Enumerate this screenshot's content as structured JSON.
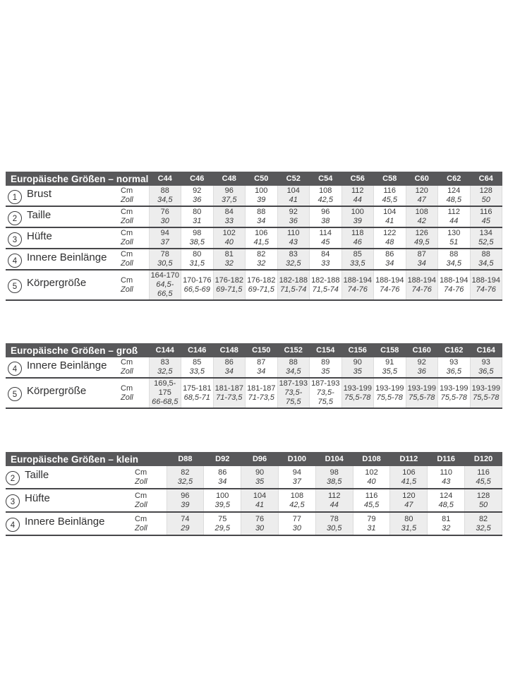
{
  "colors": {
    "header_bar": "#58585a",
    "header_text": "#ffffff",
    "row_line": "#47474a",
    "shaded_column": "#ededed",
    "column_divider": "#dcdcdc",
    "text": "#3a3a3a"
  },
  "unit_labels": {
    "cm": "Cm",
    "zoll": "Zoll"
  },
  "tables": [
    {
      "id": "normal",
      "title": "Europäische Größen – normal",
      "columns": [
        "C44",
        "C46",
        "C48",
        "C50",
        "C52",
        "C54",
        "C56",
        "C58",
        "C60",
        "C62",
        "C64"
      ],
      "rows": [
        {
          "num": "1",
          "label": "Brust",
          "cm": [
            "88",
            "92",
            "96",
            "100",
            "104",
            "108",
            "112",
            "116",
            "120",
            "124",
            "128"
          ],
          "zoll": [
            "34,5",
            "36",
            "37,5",
            "39",
            "41",
            "42,5",
            "44",
            "45,5",
            "47",
            "48,5",
            "50"
          ]
        },
        {
          "num": "2",
          "label": "Taille",
          "cm": [
            "76",
            "80",
            "84",
            "88",
            "92",
            "96",
            "100",
            "104",
            "108",
            "112",
            "116"
          ],
          "zoll": [
            "30",
            "31",
            "33",
            "34",
            "36",
            "38",
            "39",
            "41",
            "42",
            "44",
            "45"
          ]
        },
        {
          "num": "3",
          "label": "Hüfte",
          "cm": [
            "94",
            "98",
            "102",
            "106",
            "110",
            "114",
            "118",
            "122",
            "126",
            "130",
            "134"
          ],
          "zoll": [
            "37",
            "38,5",
            "40",
            "41,5",
            "43",
            "45",
            "46",
            "48",
            "49,5",
            "51",
            "52,5"
          ]
        },
        {
          "num": "4",
          "label": "Innere Beinlänge",
          "cm": [
            "78",
            "80",
            "81",
            "82",
            "83",
            "84",
            "85",
            "86",
            "87",
            "88",
            "88"
          ],
          "zoll": [
            "30,5",
            "31,5",
            "32",
            "32",
            "32,5",
            "33",
            "33,5",
            "34",
            "34",
            "34,5",
            "34,5"
          ]
        },
        {
          "num": "5",
          "label": "Körpergröße",
          "cm": [
            "164-170",
            "170-176",
            "176-182",
            "176-182",
            "182-188",
            "182-188",
            "188-194",
            "188-194",
            "188-194",
            "188-194",
            "188-194"
          ],
          "zoll": [
            "64,5-66,5",
            "66,5-69",
            "69-71,5",
            "69-71,5",
            "71,5-74",
            "71,5-74",
            "74-76",
            "74-76",
            "74-76",
            "74-76",
            "74-76"
          ]
        }
      ]
    },
    {
      "id": "gross",
      "title": "Europäische Größen – groß",
      "columns": [
        "C144",
        "C146",
        "C148",
        "C150",
        "C152",
        "C154",
        "C156",
        "C158",
        "C160",
        "C162",
        "C164"
      ],
      "rows": [
        {
          "num": "4",
          "label": "Innere Beinlänge",
          "cm": [
            "83",
            "85",
            "86",
            "87",
            "88",
            "89",
            "90",
            "91",
            "92",
            "93",
            "93"
          ],
          "zoll": [
            "32,5",
            "33,5",
            "34",
            "34",
            "34,5",
            "35",
            "35",
            "35,5",
            "36",
            "36,5",
            "36,5"
          ]
        },
        {
          "num": "5",
          "label": "Körpergröße",
          "cm": [
            "169,5-175",
            "175-181",
            "181-187",
            "181-187",
            "187-193",
            "187-193",
            "193-199",
            "193-199",
            "193-199",
            "193-199",
            "193-199"
          ],
          "zoll": [
            "66-68,5",
            "68,5-71",
            "71-73,5",
            "71-73,5",
            "73,5-75,5",
            "73,5-75,5",
            "75,5-78",
            "75,5-78",
            "75,5-78",
            "75,5-78",
            "75,5-78"
          ]
        }
      ]
    },
    {
      "id": "klein",
      "title": "Europäische Größen – klein",
      "columns": [
        "D88",
        "D92",
        "D96",
        "D100",
        "D104",
        "D108",
        "D112",
        "D116",
        "D120"
      ],
      "rows": [
        {
          "num": "2",
          "label": "Taille",
          "cm": [
            "82",
            "86",
            "90",
            "94",
            "98",
            "102",
            "106",
            "110",
            "116"
          ],
          "zoll": [
            "32,5",
            "34",
            "35",
            "37",
            "38,5",
            "40",
            "41,5",
            "43",
            "45,5"
          ]
        },
        {
          "num": "3",
          "label": "Hüfte",
          "cm": [
            "96",
            "100",
            "104",
            "108",
            "112",
            "116",
            "120",
            "124",
            "128"
          ],
          "zoll": [
            "39",
            "39,5",
            "41",
            "42,5",
            "44",
            "45,5",
            "47",
            "48,5",
            "50"
          ]
        },
        {
          "num": "4",
          "label": "Innere Beinlänge",
          "cm": [
            "74",
            "75",
            "76",
            "77",
            "78",
            "79",
            "80",
            "81",
            "82"
          ],
          "zoll": [
            "29",
            "29,5",
            "30",
            "30",
            "30,5",
            "31",
            "31,5",
            "32",
            "32,5"
          ]
        }
      ]
    }
  ]
}
